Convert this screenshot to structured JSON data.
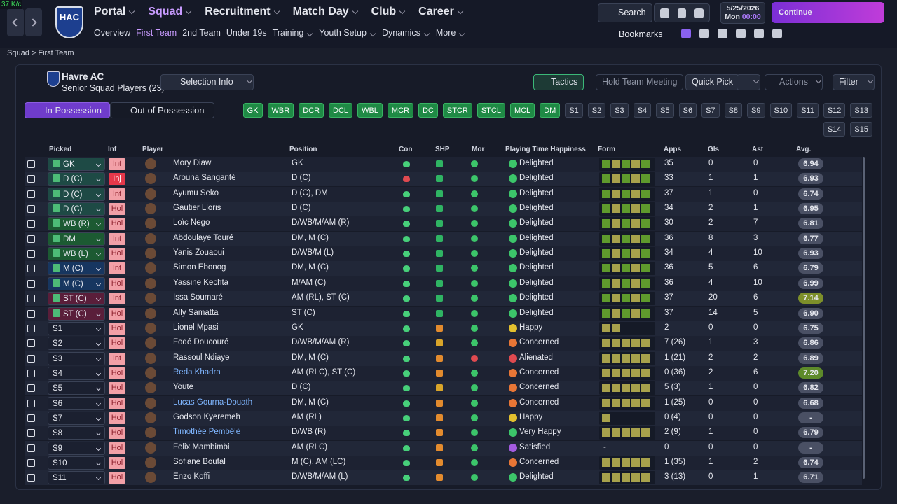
{
  "top": {
    "fps": "37 K/c",
    "badge": "HAC",
    "menu": [
      "Portal",
      "Squad",
      "Recruitment",
      "Match Day",
      "Club",
      "Career"
    ],
    "submenu": [
      "Overview",
      "First Team",
      "2nd Team",
      "Under 19s",
      "Training",
      "Youth Setup",
      "Dynamics",
      "More"
    ],
    "search": "Search",
    "date": "5/25/2026",
    "day": "Mon",
    "time": "00:00",
    "continue": "Continue",
    "bookmarks": "Bookmarks"
  },
  "breadcrumb": [
    "Squad",
    "First Team"
  ],
  "panel": {
    "team": "Havre AC",
    "subtitle": "Senior Squad Players (23)",
    "selection_info": "Selection Info",
    "tactics": "Tactics",
    "meeting": "Hold Team Meeting",
    "quick_pick": "Quick Pick",
    "actions": "Actions",
    "filter": "Filter",
    "tabs": [
      "In Possession",
      "Out of Possession"
    ],
    "positions": [
      "GK",
      "WBR",
      "DCR",
      "DCL",
      "WBL",
      "MCR",
      "DC",
      "STCR",
      "STCL",
      "MCL",
      "DM"
    ],
    "subs": [
      "S1",
      "S2",
      "S3",
      "S4",
      "S5",
      "S6",
      "S7",
      "S8",
      "S9",
      "S10",
      "S11",
      "S12",
      "S13",
      "S14",
      "S15"
    ]
  },
  "table": {
    "columns": [
      "Picked",
      "Inf",
      "Player",
      "Position",
      "Con",
      "SHP",
      "Mor",
      "Playing Time Happiness",
      "Form",
      "Apps",
      "Gls",
      "Ast",
      "Avg."
    ],
    "rows": [
      {
        "picked": "GK",
        "inf": "Int",
        "player": "Mory Diaw",
        "position": "GK",
        "happiness": "Delighted",
        "apps": "35",
        "gls": 0,
        "ast": 0,
        "avg": "6.94"
      },
      {
        "picked": "D (C)",
        "inf": "Inj",
        "player": "Arouna Sanganté",
        "position": "D (C)",
        "happiness": "Delighted",
        "apps": "33",
        "gls": 1,
        "ast": 1,
        "avg": "6.93"
      },
      {
        "picked": "D (C)",
        "inf": "Int",
        "player": "Ayumu Seko",
        "position": "D (C), DM",
        "happiness": "Delighted",
        "apps": "37",
        "gls": 1,
        "ast": 0,
        "avg": "6.74"
      },
      {
        "picked": "D (C)",
        "inf": "Hol",
        "player": "Gautier Lloris",
        "position": "D (C)",
        "happiness": "Delighted",
        "apps": "34",
        "gls": 2,
        "ast": 1,
        "avg": "6.95"
      },
      {
        "picked": "WB (R)",
        "inf": "Hol",
        "player": "Loïc Nego",
        "position": "D/WB/M/AM (R)",
        "happiness": "Delighted",
        "apps": "30",
        "gls": 2,
        "ast": 7,
        "avg": "6.81"
      },
      {
        "picked": "DM",
        "inf": "Int",
        "player": "Abdoulaye Touré",
        "position": "DM, M (C)",
        "happiness": "Delighted",
        "apps": "36",
        "gls": 8,
        "ast": 3,
        "avg": "6.77"
      },
      {
        "picked": "WB (L)",
        "inf": "Hol",
        "player": "Yanis Zouaoui",
        "position": "D/WB/M (L)",
        "happiness": "Delighted",
        "apps": "34",
        "gls": 4,
        "ast": 10,
        "avg": "6.93"
      },
      {
        "picked": "M (C)",
        "inf": "Int",
        "player": "Simon Ebonog",
        "position": "DM, M (C)",
        "happiness": "Delighted",
        "apps": "36",
        "gls": 5,
        "ast": 6,
        "avg": "6.79"
      },
      {
        "picked": "M (C)",
        "inf": "Hol",
        "player": "Yassine Kechta",
        "position": "M/AM (C)",
        "happiness": "Delighted",
        "apps": "36",
        "gls": 4,
        "ast": 10,
        "avg": "6.99"
      },
      {
        "picked": "ST (C)",
        "inf": "Int",
        "player": "Issa Soumaré",
        "position": "AM (RL), ST (C)",
        "happiness": "Delighted",
        "apps": "37",
        "gls": 20,
        "ast": 6,
        "avg": "7.14"
      },
      {
        "picked": "ST (C)",
        "inf": "Hol",
        "player": "Ally Samatta",
        "position": "ST (C)",
        "happiness": "Delighted",
        "apps": "37",
        "gls": 14,
        "ast": 5,
        "avg": "6.90"
      },
      {
        "picked": "S1",
        "inf": "Hol",
        "player": "Lionel Mpasi",
        "position": "GK",
        "happiness": "Happy",
        "apps": "2",
        "gls": 0,
        "ast": 0,
        "avg": "6.75"
      },
      {
        "picked": "S2",
        "inf": "Hol",
        "player": "Fodé Doucouré",
        "position": "D/WB/M/AM (R)",
        "happiness": "Concerned",
        "apps": "7 (26)",
        "gls": 1,
        "ast": 3,
        "avg": "6.86"
      },
      {
        "picked": "S3",
        "inf": "Int",
        "player": "Rassoul Ndiaye",
        "position": "DM, M (C)",
        "happiness": "Alienated",
        "apps": "1 (21)",
        "gls": 2,
        "ast": 2,
        "avg": "6.89"
      },
      {
        "picked": "S4",
        "inf": "Hol",
        "player": "Reda Khadra",
        "position": "AM (RLC), ST (C)",
        "happiness": "Concerned",
        "apps": "0 (36)",
        "gls": 2,
        "ast": 6,
        "avg": "7.20"
      },
      {
        "picked": "S5",
        "inf": "Hol",
        "player": "Youte",
        "position": "D (C)",
        "happiness": "Concerned",
        "apps": "5 (3)",
        "gls": 1,
        "ast": 0,
        "avg": "6.82"
      },
      {
        "picked": "S6",
        "inf": "Hol",
        "player": "Lucas Gourna-Douath",
        "position": "DM, M (C)",
        "happiness": "Concerned",
        "apps": "1 (25)",
        "gls": 0,
        "ast": 0,
        "avg": "6.68"
      },
      {
        "picked": "S7",
        "inf": "Hol",
        "player": "Godson Kyeremeh",
        "position": "AM (RL)",
        "happiness": "Happy",
        "apps": "0 (4)",
        "gls": 0,
        "ast": 0,
        "avg": "-"
      },
      {
        "picked": "S8",
        "inf": "Hol",
        "player": "Timothée Pembélé",
        "position": "D/WB (R)",
        "happiness": "Very Happy",
        "apps": "2 (9)",
        "gls": 1,
        "ast": 0,
        "avg": "6.79"
      },
      {
        "picked": "S9",
        "inf": "Hol",
        "player": "Felix Mambimbi",
        "position": "AM (RLC)",
        "happiness": "Satisfied",
        "form": "-",
        "apps": "0",
        "gls": 0,
        "ast": 0,
        "avg": "-"
      },
      {
        "picked": "S10",
        "inf": "Hol",
        "player": "Sofiane Boufal",
        "position": "M (C), AM (LC)",
        "happiness": "Concerned",
        "apps": "1 (35)",
        "gls": 1,
        "ast": 2,
        "avg": "6.74"
      },
      {
        "picked": "S11",
        "inf": "Hol",
        "player": "Enzo Koffi",
        "position": "D/WB/M/AM (L)",
        "happiness": "Delighted",
        "apps": "3 (13)",
        "gls": 0,
        "ast": 1,
        "avg": "6.71"
      }
    ]
  }
}
